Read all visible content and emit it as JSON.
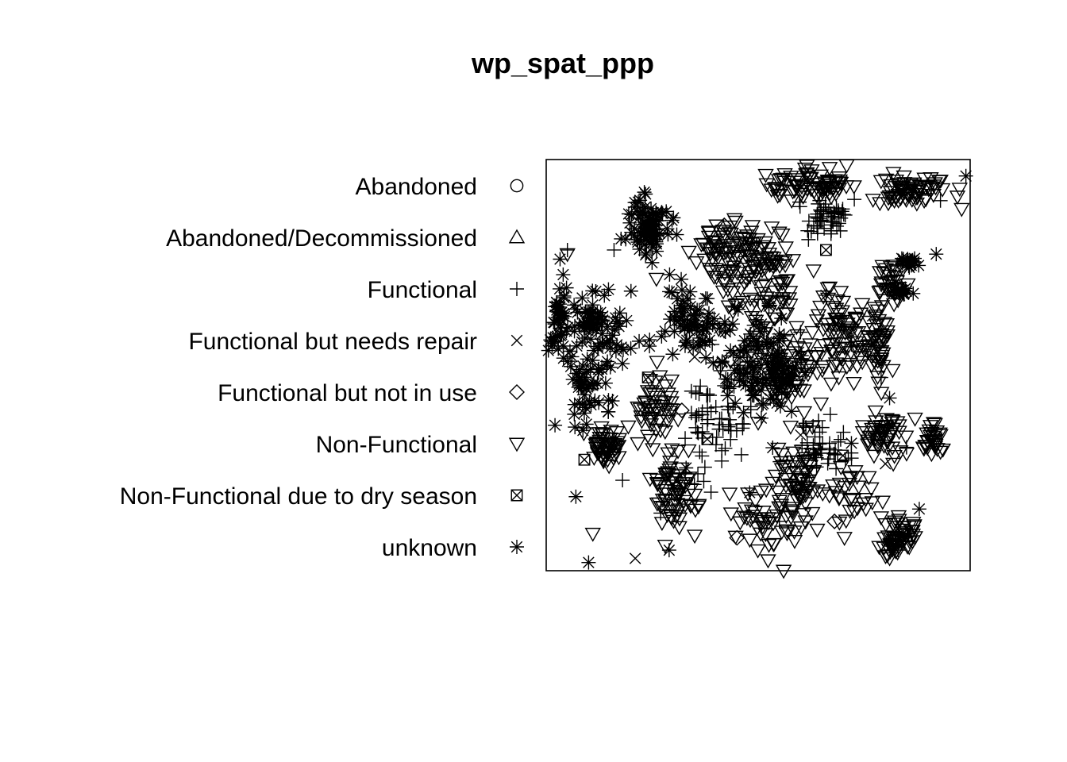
{
  "chart_data": {
    "type": "scatter",
    "title": "wp_spat_ppp",
    "subtitle": "",
    "xlabel": "",
    "ylabel": "",
    "axes_shown": false,
    "window": "rectangular observation window",
    "legend_position": "left",
    "marks_color": "#000000",
    "background": "#ffffff",
    "legend": [
      {
        "label": "Abandoned",
        "symbol": "circle"
      },
      {
        "label": "Abandoned/Decommissioned",
        "symbol": "triangle-up"
      },
      {
        "label": "Functional",
        "symbol": "plus"
      },
      {
        "label": "Functional but needs repair",
        "symbol": "cross"
      },
      {
        "label": "Functional but not in use",
        "symbol": "diamond"
      },
      {
        "label": "Non-Functional",
        "symbol": "triangle-down"
      },
      {
        "label": "Non-Functional due to dry season",
        "symbol": "square-cross"
      },
      {
        "label": "unknown",
        "symbol": "asterisk"
      }
    ],
    "series": [
      {
        "name": "Functional",
        "symbol": "plus",
        "points": [
          [
            0.16,
            0.78
          ],
          [
            0.05,
            0.78
          ],
          [
            0.42,
            0.45
          ],
          [
            0.36,
            0.38
          ],
          [
            0.79,
            0.47
          ],
          [
            0.6,
            0.58
          ],
          [
            0.93,
            0.9
          ],
          [
            0.18,
            0.22
          ],
          [
            0.43,
            0.35
          ],
          [
            0.27,
            0.14
          ],
          [
            0.02,
            0.6
          ],
          [
            0.67,
            0.38
          ],
          [
            0.85,
            0.3
          ],
          [
            0.72,
            0.55
          ],
          [
            0.55,
            0.12
          ],
          [
            0.83,
            0.05
          ],
          [
            0.5,
            0.66
          ],
          [
            0.64,
            0.82
          ]
        ]
      },
      {
        "name": "Functional but needs repair",
        "symbol": "cross",
        "points": [
          [
            0.21,
            0.03
          ],
          [
            0.8,
            0.26
          ],
          [
            0.6,
            0.33
          ],
          [
            0.35,
            0.52
          ],
          [
            0.47,
            0.71
          ],
          [
            0.77,
            0.62
          ]
        ]
      },
      {
        "name": "Functional but not in use",
        "symbol": "diamond",
        "points": [
          [
            0.45,
            0.08
          ],
          [
            0.42,
            0.84
          ],
          [
            0.32,
            0.39
          ],
          [
            0.68,
            0.12
          ]
        ]
      },
      {
        "name": "Non-Functional",
        "symbol": "triangle-down",
        "points": [
          [
            0.05,
            0.77
          ],
          [
            0.56,
            0.0
          ],
          [
            0.97,
            0.91
          ],
          [
            0.98,
            0.88
          ],
          [
            0.79,
            0.13
          ],
          [
            0.93,
            0.33
          ],
          [
            0.11,
            0.09
          ],
          [
            0.74,
            0.52
          ],
          [
            0.36,
            0.16
          ],
          [
            0.5,
            0.36
          ],
          [
            0.15,
            0.29
          ],
          [
            0.87,
            0.37
          ],
          [
            0.26,
            0.71
          ],
          [
            0.62,
            0.22
          ],
          [
            0.52,
            0.94
          ],
          [
            0.84,
            0.1
          ]
        ]
      },
      {
        "name": "Non-Functional due to dry season",
        "symbol": "square-cross",
        "points": [
          [
            0.38,
            0.32
          ],
          [
            0.09,
            0.27
          ],
          [
            0.7,
            0.28
          ],
          [
            0.24,
            0.47
          ],
          [
            0.66,
            0.78
          ]
        ]
      },
      {
        "name": "unknown",
        "symbol": "asterisk",
        "points": [
          [
            0.1,
            0.02
          ],
          [
            0.07,
            0.18
          ],
          [
            0.29,
            0.05
          ],
          [
            0.99,
            0.96
          ],
          [
            0.04,
            0.72
          ],
          [
            0.2,
            0.68
          ],
          [
            0.44,
            0.6
          ],
          [
            0.92,
            0.77
          ],
          [
            0.81,
            0.42
          ],
          [
            0.56,
            0.48
          ],
          [
            0.15,
            0.56
          ],
          [
            0.66,
            0.67
          ],
          [
            0.33,
            0.25
          ],
          [
            0.48,
            0.19
          ],
          [
            0.72,
            0.31
          ],
          [
            0.88,
            0.15
          ]
        ]
      }
    ],
    "clusters": [
      {
        "symbol": "asterisk",
        "center": [
          0.24,
          0.84
        ],
        "spread": [
          0.04,
          0.06
        ],
        "n": 90
      },
      {
        "symbol": "asterisk",
        "center": [
          0.12,
          0.6
        ],
        "spread": [
          0.06,
          0.08
        ],
        "n": 80
      },
      {
        "symbol": "triangle-down",
        "center": [
          0.5,
          0.7
        ],
        "spread": [
          0.08,
          0.12
        ],
        "n": 120
      },
      {
        "symbol": "asterisk",
        "center": [
          0.5,
          0.5
        ],
        "spread": [
          0.08,
          0.1
        ],
        "n": 110
      },
      {
        "symbol": "triangle-down",
        "center": [
          0.56,
          0.48
        ],
        "spread": [
          0.06,
          0.07
        ],
        "n": 80
      },
      {
        "symbol": "triangle-down",
        "center": [
          0.62,
          0.94
        ],
        "spread": [
          0.08,
          0.03
        ],
        "n": 80
      },
      {
        "symbol": "triangle-down",
        "center": [
          0.86,
          0.93
        ],
        "spread": [
          0.06,
          0.03
        ],
        "n": 70
      },
      {
        "symbol": "plus",
        "center": [
          0.66,
          0.86
        ],
        "spread": [
          0.06,
          0.04
        ],
        "n": 50
      },
      {
        "symbol": "triangle-down",
        "center": [
          0.69,
          0.57
        ],
        "spread": [
          0.05,
          0.1
        ],
        "n": 80
      },
      {
        "symbol": "asterisk",
        "center": [
          0.34,
          0.6
        ],
        "spread": [
          0.06,
          0.08
        ],
        "n": 70
      },
      {
        "symbol": "triangle-down",
        "center": [
          0.42,
          0.78
        ],
        "spread": [
          0.06,
          0.06
        ],
        "n": 60
      },
      {
        "symbol": "triangle-down",
        "center": [
          0.14,
          0.3
        ],
        "spread": [
          0.03,
          0.04
        ],
        "n": 50
      },
      {
        "symbol": "triangle-down",
        "center": [
          0.3,
          0.2
        ],
        "spread": [
          0.05,
          0.08
        ],
        "n": 70
      },
      {
        "symbol": "triangle-down",
        "center": [
          0.6,
          0.2
        ],
        "spread": [
          0.05,
          0.08
        ],
        "n": 70
      },
      {
        "symbol": "triangle-down",
        "center": [
          0.8,
          0.33
        ],
        "spread": [
          0.04,
          0.04
        ],
        "n": 50
      },
      {
        "symbol": "triangle-down",
        "center": [
          0.78,
          0.55
        ],
        "spread": [
          0.03,
          0.08
        ],
        "n": 50
      },
      {
        "symbol": "triangle-down",
        "center": [
          0.84,
          0.09
        ],
        "spread": [
          0.03,
          0.03
        ],
        "n": 40
      },
      {
        "symbol": "triangle-down",
        "center": [
          0.81,
          0.06
        ],
        "spread": [
          0.02,
          0.02
        ],
        "n": 20
      },
      {
        "symbol": "triangle-down",
        "center": [
          0.91,
          0.32
        ],
        "spread": [
          0.02,
          0.03
        ],
        "n": 30
      },
      {
        "symbol": "asterisk",
        "center": [
          0.1,
          0.45
        ],
        "spread": [
          0.05,
          0.08
        ],
        "n": 50
      },
      {
        "symbol": "asterisk",
        "center": [
          0.03,
          0.62
        ],
        "spread": [
          0.02,
          0.08
        ],
        "n": 40
      },
      {
        "symbol": "plus",
        "center": [
          0.4,
          0.35
        ],
        "spread": [
          0.08,
          0.1
        ],
        "n": 60
      },
      {
        "symbol": "triangle-down",
        "center": [
          0.26,
          0.4
        ],
        "spread": [
          0.04,
          0.06
        ],
        "n": 50
      },
      {
        "symbol": "plus",
        "center": [
          0.64,
          0.3
        ],
        "spread": [
          0.05,
          0.06
        ],
        "n": 40
      },
      {
        "symbol": "triangle-down",
        "center": [
          0.5,
          0.12
        ],
        "spread": [
          0.06,
          0.05
        ],
        "n": 40
      },
      {
        "symbol": "triangle-down",
        "center": [
          0.81,
          0.71
        ],
        "spread": [
          0.03,
          0.05
        ],
        "n": 30
      },
      {
        "symbol": "triangle-down",
        "center": [
          0.72,
          0.18
        ],
        "spread": [
          0.05,
          0.06
        ],
        "n": 30
      },
      {
        "symbol": "asterisk",
        "center": [
          0.86,
          0.75
        ],
        "spread": [
          0.02,
          0.01
        ],
        "n": 20
      },
      {
        "symbol": "asterisk",
        "center": [
          0.84,
          0.68
        ],
        "spread": [
          0.02,
          0.01
        ],
        "n": 15
      }
    ]
  }
}
